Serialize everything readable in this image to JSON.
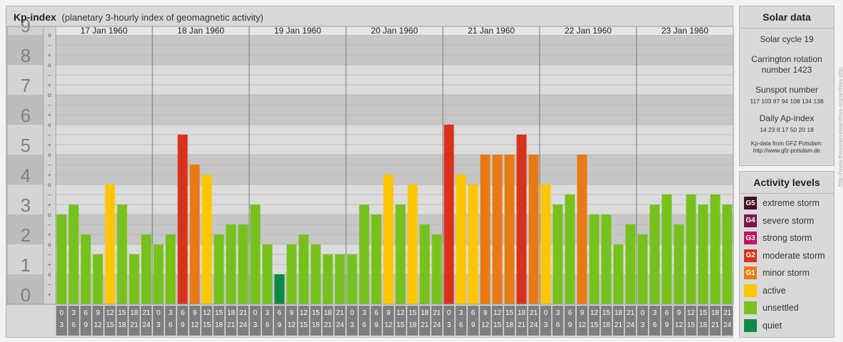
{
  "kp_panel": {
    "title": "Kp-index",
    "subtitle": "(planetary 3-hourly index of geomagnetic activity)"
  },
  "chart_data": {
    "type": "bar",
    "title": "Kp-index",
    "subtitle": "(planetary 3-hourly index of geomagnetic activity)",
    "ylim": [
      0,
      9
    ],
    "y_ticks": [
      "0",
      "1",
      "2",
      "3",
      "4",
      "5",
      "6",
      "7",
      "8",
      "9"
    ],
    "sub_ticks": [
      "+",
      "o",
      "–"
    ],
    "days": [
      "17 Jan 1960",
      "18 Jan 1960",
      "19 Jan 1960",
      "20 Jan 1960",
      "21 Jan 1960",
      "22 Jan 1960",
      "23 Jan 1960"
    ],
    "hour_labels_top": [
      "0",
      "3",
      "6",
      "9",
      "12",
      "15",
      "18",
      "21"
    ],
    "hour_labels_bottom": [
      "3",
      "6",
      "9",
      "12",
      "15",
      "18",
      "21",
      "24"
    ],
    "values": [
      [
        3.0,
        3.33,
        2.33,
        1.67,
        4.0,
        3.33,
        1.67,
        2.33
      ],
      [
        2.0,
        2.33,
        5.67,
        4.67,
        4.33,
        2.33,
        2.67,
        2.67
      ],
      [
        3.33,
        2.0,
        1.0,
        2.0,
        2.33,
        2.0,
        1.67,
        1.67
      ],
      [
        1.67,
        3.33,
        3.0,
        4.33,
        3.33,
        4.0,
        2.67,
        2.33
      ],
      [
        6.0,
        4.33,
        4.0,
        5.0,
        5.0,
        5.0,
        5.67,
        5.0
      ],
      [
        4.0,
        3.33,
        3.67,
        5.0,
        3.0,
        3.0,
        2.0,
        2.67
      ],
      [
        2.33,
        3.33,
        3.67,
        2.67,
        3.67,
        3.33,
        3.67,
        3.33
      ]
    ],
    "colors": {
      "quiet": "#0e8a46",
      "unsettled": "#77c11d",
      "active": "#ffc600",
      "minor": "#e87a15",
      "moderate": "#d9321a",
      "strong": "#c0155f",
      "severe": "#7a1650",
      "extreme": "#4a0a2a"
    }
  },
  "solar_data": {
    "title": "Solar data",
    "cycle": "Solar cycle 19",
    "carrington_line1": "Carrington rotation",
    "carrington_line2": "number 1423",
    "sunspot_title": "Sunspot number",
    "sunspot_values": "117  103  87  94  108  134  138",
    "ap_title": "Daily Ap-index",
    "ap_values": "14   23   8   17   50   20   18",
    "source_line1": "Kp-data from GFZ Potsdam:",
    "source_line2": "http://www.gfz-potsdam.de"
  },
  "activity_levels": {
    "title": "Activity levels",
    "items": [
      {
        "badge": "G5",
        "label": "extreme storm",
        "color": "#4a0a2a"
      },
      {
        "badge": "G4",
        "label": "severe storm",
        "color": "#7a1650"
      },
      {
        "badge": "G3",
        "label": "strong storm",
        "color": "#c0155f"
      },
      {
        "badge": "G2",
        "label": "moderate storm",
        "color": "#d9321a"
      },
      {
        "badge": "G1",
        "label": "minor storm",
        "color": "#e87a15"
      },
      {
        "badge": "",
        "label": "active",
        "color": "#ffc600"
      },
      {
        "badge": "",
        "label": "unsettled",
        "color": "#77c11d"
      },
      {
        "badge": "",
        "label": "quiet",
        "color": "#0e8a46"
      }
    ]
  },
  "credit": "http://www.theusejevelearchive.org/archive.php"
}
